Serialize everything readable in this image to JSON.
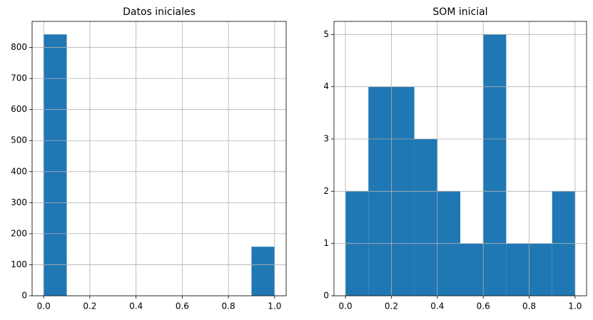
{
  "chart_data": [
    {
      "type": "histogram",
      "title": "Datos iniciales",
      "bins": [
        0,
        0.1,
        0.2,
        0.3,
        0.4,
        0.5,
        0.6,
        0.7,
        0.8,
        0.9,
        1.0
      ],
      "values": [
        842,
        0,
        0,
        0,
        0,
        0,
        0,
        0,
        0,
        158
      ],
      "color": "#1f77b4",
      "xlim": [
        -0.05,
        1.05
      ],
      "xticks": [
        {
          "value": 0,
          "label": "0.0"
        },
        0.2,
        0.4,
        0.6,
        0.8,
        {
          "value": 1,
          "label": "1.0"
        }
      ],
      "ylim": [
        0,
        884
      ],
      "yticks": [
        0,
        100,
        200,
        300,
        400,
        500,
        600,
        700,
        800
      ],
      "grid": true
    },
    {
      "type": "histogram",
      "title": "SOM inicial",
      "bins": [
        0,
        0.1,
        0.2,
        0.3,
        0.4,
        0.5,
        0.6,
        0.7,
        0.8,
        0.9,
        1.0
      ],
      "values": [
        2,
        4,
        4,
        3,
        2,
        1,
        5,
        1,
        1,
        2
      ],
      "color": "#1f77b4",
      "xlim": [
        -0.05,
        1.05
      ],
      "xticks": [
        {
          "value": 0,
          "label": "0.0"
        },
        0.2,
        0.4,
        0.6,
        0.8,
        {
          "value": 1,
          "label": "1.0"
        }
      ],
      "ylim": [
        0,
        5.25
      ],
      "yticks": [
        0,
        1,
        2,
        3,
        4,
        5
      ],
      "grid": true
    }
  ]
}
